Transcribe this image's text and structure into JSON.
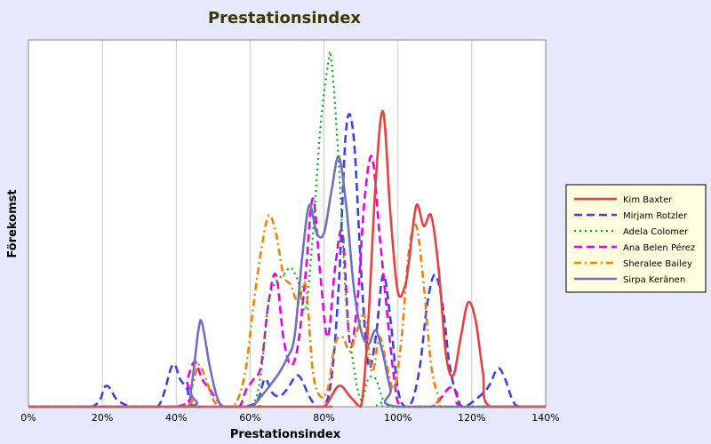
{
  "chart_data": {
    "type": "line",
    "title": "Prestationsindex",
    "xlabel": "Prestationsindex",
    "ylabel": "Förekomst",
    "xlim": [
      0,
      140
    ],
    "ylim": [
      0,
      1.0
    ],
    "x_ticks": [
      "0%",
      "20%",
      "40%",
      "60%",
      "80%",
      "100%",
      "120%",
      "140%"
    ],
    "x_tick_values": [
      0,
      20,
      40,
      60,
      80,
      100,
      120,
      140
    ],
    "grid": "vertical",
    "legend_position": "right",
    "series": [
      {
        "name": "Kim Baxter",
        "color": "#e84040",
        "dash": "solid",
        "points": [
          [
            0,
            0
          ],
          [
            75,
            0
          ],
          [
            80,
            0
          ],
          [
            84,
            0.06
          ],
          [
            87,
            0.03
          ],
          [
            90,
            0
          ],
          [
            92,
            0.25
          ],
          [
            94,
            0.65
          ],
          [
            96,
            0.85
          ],
          [
            98,
            0.55
          ],
          [
            100,
            0.33
          ],
          [
            102,
            0.35
          ],
          [
            103,
            0.42
          ],
          [
            105,
            0.58
          ],
          [
            107,
            0.52
          ],
          [
            109,
            0.55
          ],
          [
            111,
            0.4
          ],
          [
            113,
            0.15
          ],
          [
            115,
            0.09
          ],
          [
            117,
            0.2
          ],
          [
            119,
            0.3
          ],
          [
            121,
            0.25
          ],
          [
            123,
            0.1
          ],
          [
            125,
            0
          ],
          [
            140,
            0
          ]
        ]
      },
      {
        "name": "Mirjam Rotzler",
        "color": "#4040e8",
        "dash": "long",
        "points": [
          [
            0,
            0
          ],
          [
            17,
            0
          ],
          [
            21,
            0.06
          ],
          [
            24,
            0.02
          ],
          [
            28,
            0
          ],
          [
            35,
            0
          ],
          [
            39,
            0.12
          ],
          [
            41,
            0.08
          ],
          [
            43,
            0.05
          ],
          [
            45,
            0
          ],
          [
            58,
            0
          ],
          [
            62,
            0.02
          ],
          [
            64,
            0.08
          ],
          [
            66,
            0.04
          ],
          [
            68,
            0.03
          ],
          [
            70,
            0.05
          ],
          [
            73,
            0.09
          ],
          [
            76,
            0.03
          ],
          [
            78,
            0
          ],
          [
            80,
            0
          ],
          [
            82,
            0.08
          ],
          [
            84,
            0.35
          ],
          [
            86,
            0.8
          ],
          [
            88,
            0.78
          ],
          [
            90,
            0.4
          ],
          [
            92,
            0.12
          ],
          [
            94,
            0.2
          ],
          [
            96,
            0.38
          ],
          [
            98,
            0.25
          ],
          [
            100,
            0.05
          ],
          [
            102,
            0
          ],
          [
            104,
            0.02
          ],
          [
            106,
            0.12
          ],
          [
            108,
            0.3
          ],
          [
            110,
            0.38
          ],
          [
            112,
            0.3
          ],
          [
            114,
            0.12
          ],
          [
            116,
            0.03
          ],
          [
            118,
            0
          ],
          [
            124,
            0.05
          ],
          [
            127,
            0.11
          ],
          [
            129,
            0.08
          ],
          [
            131,
            0.02
          ],
          [
            133,
            0
          ],
          [
            140,
            0
          ]
        ]
      },
      {
        "name": "Adela Colomer",
        "color": "#00b000",
        "dash": "dotted",
        "points": [
          [
            0,
            0
          ],
          [
            58,
            0
          ],
          [
            61,
            0.01
          ],
          [
            63,
            0.1
          ],
          [
            65,
            0.3
          ],
          [
            67,
            0.36
          ],
          [
            69,
            0.38
          ],
          [
            71,
            0.4
          ],
          [
            73,
            0.36
          ],
          [
            75,
            0.28
          ],
          [
            77,
            0.5
          ],
          [
            79,
            0.8
          ],
          [
            81,
            0.98
          ],
          [
            82,
            1.0
          ],
          [
            84,
            0.7
          ],
          [
            86,
            0.3
          ],
          [
            88,
            0.12
          ],
          [
            90,
            0.02
          ],
          [
            92,
            0.08
          ],
          [
            94,
            0.08
          ],
          [
            96,
            0.02
          ],
          [
            98,
            0
          ],
          [
            140,
            0
          ]
        ]
      },
      {
        "name": "Ana Belen Pérez",
        "color": "#e800e8",
        "dash": "long",
        "points": [
          [
            0,
            0
          ],
          [
            40,
            0
          ],
          [
            43,
            0.08
          ],
          [
            45,
            0.13
          ],
          [
            47,
            0.08
          ],
          [
            49,
            0.05
          ],
          [
            51,
            0.02
          ],
          [
            53,
            0
          ],
          [
            57,
            0
          ],
          [
            59,
            0.05
          ],
          [
            61,
            0.08
          ],
          [
            63,
            0.12
          ],
          [
            65,
            0.3
          ],
          [
            67,
            0.38
          ],
          [
            69,
            0.2
          ],
          [
            71,
            0.12
          ],
          [
            73,
            0.18
          ],
          [
            75,
            0.38
          ],
          [
            77,
            0.6
          ],
          [
            79,
            0.38
          ],
          [
            81,
            0.2
          ],
          [
            83,
            0.4
          ],
          [
            85,
            0.5
          ],
          [
            87,
            0.18
          ],
          [
            89,
            0.3
          ],
          [
            91,
            0.6
          ],
          [
            93,
            0.72
          ],
          [
            95,
            0.5
          ],
          [
            97,
            0.28
          ],
          [
            99,
            0.08
          ],
          [
            101,
            0
          ],
          [
            109,
            0
          ],
          [
            112,
            0.03
          ],
          [
            114,
            0.055
          ],
          [
            116,
            0.04
          ],
          [
            118,
            0
          ],
          [
            140,
            0
          ]
        ]
      },
      {
        "name": "Sheralee Bailey",
        "color": "#f08000",
        "dash": "dashdot",
        "points": [
          [
            0,
            0
          ],
          [
            40,
            0
          ],
          [
            44,
            0.05
          ],
          [
            46,
            0.12
          ],
          [
            48,
            0.08
          ],
          [
            50,
            0.02
          ],
          [
            52,
            0
          ],
          [
            55,
            0
          ],
          [
            57,
            0.03
          ],
          [
            59,
            0.12
          ],
          [
            61,
            0.3
          ],
          [
            63,
            0.45
          ],
          [
            65,
            0.55
          ],
          [
            67,
            0.5
          ],
          [
            69,
            0.38
          ],
          [
            71,
            0.35
          ],
          [
            73,
            0.3
          ],
          [
            75,
            0.35
          ],
          [
            77,
            0.1
          ],
          [
            79,
            0.03
          ],
          [
            81,
            0.05
          ],
          [
            83,
            0.18
          ],
          [
            85,
            0.2
          ],
          [
            87,
            0.16
          ],
          [
            89,
            0.22
          ],
          [
            91,
            0.26
          ],
          [
            93,
            0.1
          ],
          [
            95,
            0.2
          ],
          [
            97,
            0.12
          ],
          [
            99,
            0.05
          ],
          [
            101,
            0.2
          ],
          [
            103,
            0.45
          ],
          [
            105,
            0.52
          ],
          [
            107,
            0.35
          ],
          [
            109,
            0.12
          ],
          [
            111,
            0.03
          ],
          [
            113,
            0
          ],
          [
            140,
            0
          ]
        ]
      },
      {
        "name": "Sirpa Keränen",
        "color": "#7070c0",
        "dash": "solid",
        "points": [
          [
            0,
            0
          ],
          [
            42,
            0
          ],
          [
            44,
            0.05
          ],
          [
            46,
            0.22
          ],
          [
            47,
            0.24
          ],
          [
            49,
            0.12
          ],
          [
            51,
            0.03
          ],
          [
            53,
            0
          ],
          [
            60,
            0
          ],
          [
            63,
            0.03
          ],
          [
            66,
            0.07
          ],
          [
            68,
            0.1
          ],
          [
            70,
            0.14
          ],
          [
            72,
            0.2
          ],
          [
            74,
            0.42
          ],
          [
            76,
            0.58
          ],
          [
            78,
            0.5
          ],
          [
            80,
            0.5
          ],
          [
            82,
            0.62
          ],
          [
            84,
            0.72
          ],
          [
            86,
            0.58
          ],
          [
            88,
            0.35
          ],
          [
            90,
            0.22
          ],
          [
            92,
            0.18
          ],
          [
            94,
            0.22
          ],
          [
            96,
            0.15
          ],
          [
            98,
            0.05
          ],
          [
            100,
            0
          ],
          [
            140,
            0
          ]
        ]
      }
    ]
  }
}
